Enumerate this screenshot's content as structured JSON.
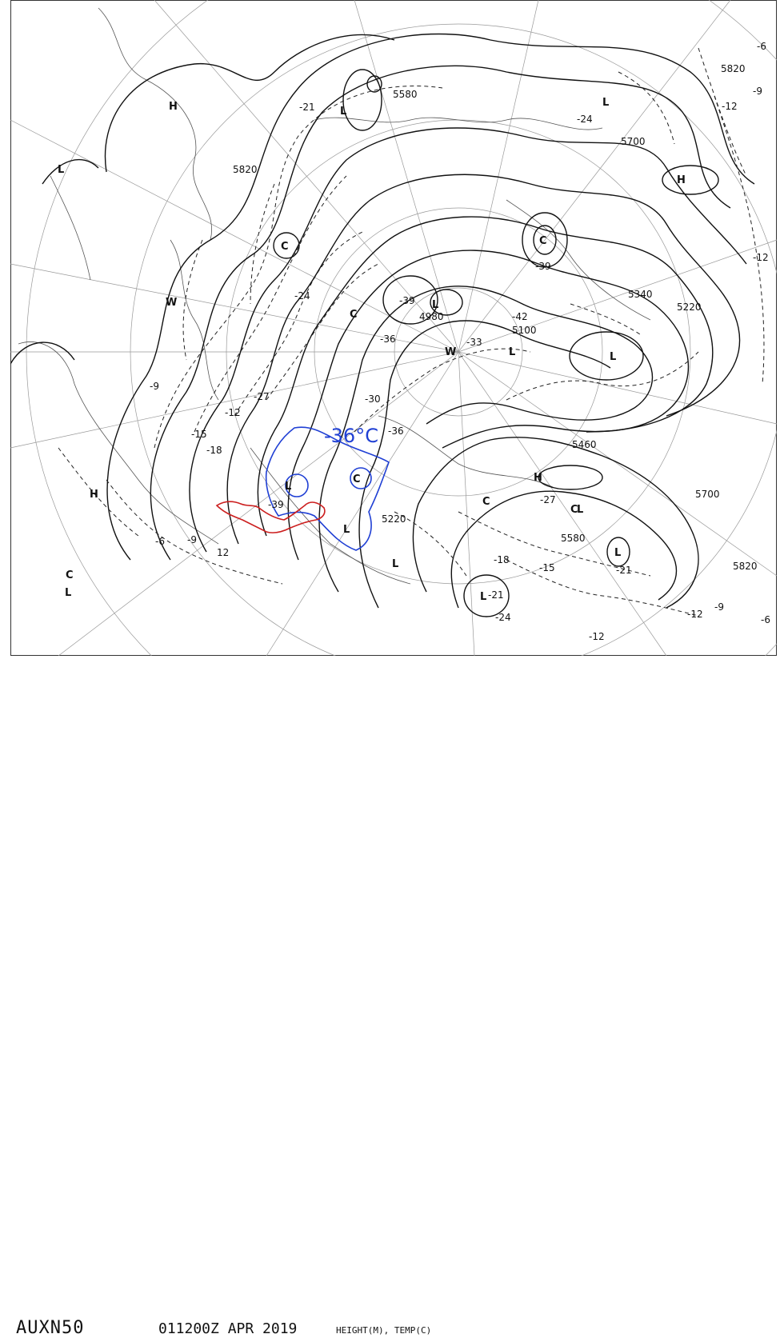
{
  "chart": {
    "id": "AUXN50",
    "valid_time": "011200Z APR 2019",
    "parameters": "HEIGHT(M), TEMP(C)"
  },
  "annotation": {
    "text": "-36°C",
    "outline_color": "#1f3fd4",
    "region_color": "#cc1f1f"
  },
  "height_labels": [
    "5580",
    "5820",
    "5700",
    "5820",
    "4980",
    "5100",
    "5340",
    "5220",
    "5460",
    "5220",
    "5580",
    "5700",
    "5820"
  ],
  "temp_labels": [
    "-21",
    "-24",
    "-12",
    "-9",
    "-6",
    "-24",
    "-27",
    "-30",
    "-33",
    "-36",
    "-39",
    "-36",
    "-42",
    "-39",
    "-12",
    "-9",
    "-15",
    "-18",
    "-21",
    "-24",
    "-18",
    "-15",
    "-12",
    "-9",
    "-6",
    "-27",
    "-39",
    "-12",
    "-9",
    "-12",
    "-6",
    "-21",
    "12"
  ],
  "pressure_symbols": [
    "H",
    "L",
    "L",
    "L",
    "H",
    "C",
    "W",
    "C",
    "L",
    "L",
    "C",
    "L",
    "L",
    "W",
    "C",
    "H",
    "C",
    "L",
    "L",
    "C",
    "L",
    "H",
    "C",
    "L",
    "L",
    "L"
  ]
}
